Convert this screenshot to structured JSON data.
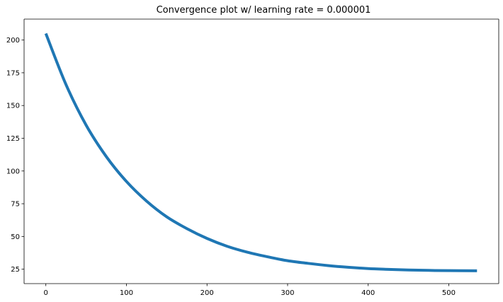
{
  "chart_data": {
    "type": "line",
    "title": "Convergence plot w/ learning rate = 0.000001",
    "xlabel": "",
    "ylabel": "",
    "xlim": [
      -27,
      562
    ],
    "ylim": [
      14,
      216
    ],
    "xticks": [
      0,
      100,
      200,
      300,
      400,
      500
    ],
    "yticks": [
      25,
      50,
      75,
      100,
      125,
      150,
      175,
      200
    ],
    "grid": false,
    "legend": "none",
    "series": [
      {
        "color": "#1f77b4",
        "x": [
          0,
          25,
          50,
          75,
          100,
          125,
          150,
          175,
          200,
          225,
          250,
          275,
          300,
          325,
          350,
          375,
          400,
          425,
          450,
          475,
          500,
          535
        ],
        "y": [
          205,
          166,
          135,
          111,
          92,
          77,
          65,
          56,
          48.5,
          42.5,
          38,
          34.5,
          31.5,
          29.5,
          27.8,
          26.5,
          25.5,
          24.9,
          24.4,
          24.1,
          23.9,
          23.8
        ]
      }
    ]
  }
}
